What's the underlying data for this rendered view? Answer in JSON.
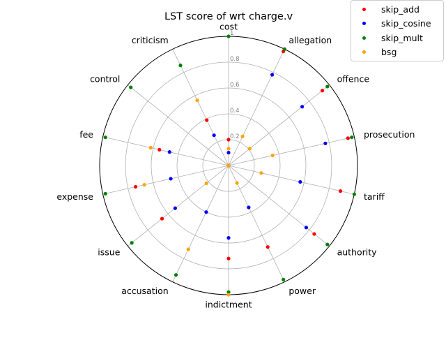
{
  "chart_data": {
    "type": "scatter",
    "polar": true,
    "title": "LST score of wrt charge.v",
    "rlim": [
      0,
      1
    ],
    "rticks": [
      0.2,
      0.4,
      0.6,
      0.8,
      1
    ],
    "rtick_labels": [
      "0.2",
      "0.4",
      "0.6",
      "0.8",
      "1"
    ],
    "grid": true,
    "legend_position": "top-right",
    "categories": [
      "cost",
      "allegation",
      "offence",
      "prosecution",
      "tariff",
      "authority",
      "power",
      "indictment",
      "accusation",
      "issue",
      "expense",
      "fee",
      "control",
      "criticism"
    ],
    "series": [
      {
        "name": "skip_add",
        "color": "#ff0000",
        "values": [
          0.2,
          0.98,
          0.93,
          0.95,
          0.89,
          0.85,
          0.7,
          0.72,
          0.0,
          0.66,
          0.74,
          0.55,
          0.0,
          0.39
        ]
      },
      {
        "name": "skip_cosine",
        "color": "#0000ff",
        "values": [
          0.1,
          0.78,
          0.73,
          0.77,
          0.57,
          0.77,
          0.36,
          0.56,
          0.4,
          0.53,
          0.46,
          0.47,
          0.0,
          0.26
        ]
      },
      {
        "name": "skip_mult",
        "color": "#008000",
        "values": [
          1.0,
          1.0,
          0.98,
          0.98,
          1.0,
          0.98,
          0.98,
          0.98,
          0.94,
          0.96,
          0.98,
          0.98,
          0.97,
          0.86
        ]
      },
      {
        "name": "bsg",
        "color": "#ffa500",
        "values": [
          0.13,
          0.25,
          0.21,
          0.35,
          0.26,
          0.0,
          0.15,
          1.0,
          0.72,
          0.22,
          0.67,
          0.62,
          0.0,
          0.56
        ]
      }
    ]
  }
}
